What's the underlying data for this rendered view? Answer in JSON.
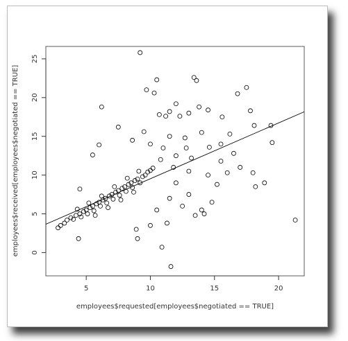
{
  "chart_data": {
    "type": "scatter",
    "x_label": "employees$requested[employees$negotiated == TRUE]",
    "y_label": "employees$received[employees$negotiated == TRUE]",
    "x": [
      2.8,
      3,
      3.3,
      3.5,
      3.8,
      4,
      4.2,
      4.5,
      4.6,
      4.8,
      5,
      5.1,
      5.3,
      5.5,
      5.6,
      5.8,
      6,
      6.1,
      6.3,
      6.5,
      6.6,
      6.8,
      7,
      7.1,
      7.3,
      7.5,
      7.6,
      7.8,
      8,
      8.1,
      8.3,
      8.5,
      8.6,
      8.8,
      9,
      9.2,
      9.4,
      9.6,
      9.8,
      10,
      10.2,
      4.3,
      5.2,
      6.2,
      7.2,
      8.2,
      9.1,
      5.7,
      6.7,
      7.7,
      8.7,
      4.4,
      4.5,
      5.5,
      6,
      6.2,
      7.5,
      8.6,
      9.2,
      9.7,
      10.5,
      10.3,
      10.7,
      11.2,
      11.5,
      11.5,
      12,
      12.3,
      13,
      13.4,
      13.6,
      13.8,
      14.5,
      15.6,
      14,
      12.7,
      11,
      10.8,
      12,
      13.2,
      14.6,
      15.5,
      16.2,
      16.8,
      17.5,
      17.8,
      18.1,
      19.4,
      19.5,
      18,
      18.2,
      18.9,
      21.3,
      17,
      16,
      15.2,
      14.8,
      14,
      13.5,
      14.2,
      12.5,
      11.5,
      11.3,
      10.5,
      10.9,
      11.6,
      9,
      8.9,
      10,
      12,
      13,
      13,
      15.5,
      16.5,
      12.8,
      9.5,
      10,
      11.8,
      14.5
    ],
    "y": [
      3.2,
      3.5,
      3.8,
      4.2,
      4.5,
      4.3,
      4.8,
      5,
      4.6,
      5.3,
      5.5,
      5,
      5.8,
      6,
      5.4,
      6.3,
      6.5,
      6,
      6.8,
      7,
      6.4,
      7.3,
      7.5,
      6.9,
      7.8,
      8,
      7.4,
      8.3,
      8.5,
      7.9,
      8.8,
      9,
      8.4,
      9.3,
      9.5,
      9,
      9.8,
      10,
      10.4,
      10.6,
      10.9,
      5.6,
      6.4,
      7.3,
      8.5,
      9.6,
      10.5,
      4.8,
      5.8,
      6.8,
      7.8,
      1.8,
      8.2,
      12.6,
      13.9,
      18.8,
      16.2,
      14.5,
      25.8,
      21,
      22.3,
      20.6,
      17.8,
      17.6,
      18.2,
      15,
      19.2,
      17.6,
      18,
      22.6,
      22.2,
      18.8,
      18.4,
      17.5,
      15.5,
      14.8,
      13.5,
      12,
      12.5,
      12.2,
      13.6,
      14,
      15.3,
      20.5,
      21.3,
      18.3,
      16.4,
      16.4,
      14.2,
      10.3,
      8.5,
      9,
      4.2,
      11,
      10.3,
      8.8,
      6.5,
      5.5,
      4.8,
      5,
      6,
      7,
      3.8,
      5.5,
      0.7,
      -1.8,
      1.8,
      3,
      3.5,
      9,
      10.5,
      7.5,
      11.8,
      12.8,
      13.5,
      15.6,
      14,
      11,
      10
    ],
    "xlim": [
      1.85,
      22.0
    ],
    "ylim": [
      -3.0,
      26.6
    ],
    "xticks": [
      5,
      10,
      15,
      20
    ],
    "yticks": [
      0,
      5,
      10,
      15,
      20,
      25
    ],
    "fit_line": {
      "intercept": 2.33,
      "slope": 0.72
    },
    "color": "#000000",
    "grid": false
  }
}
